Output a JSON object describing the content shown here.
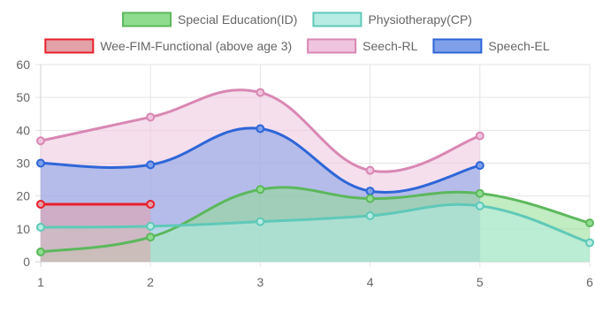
{
  "chart_data": {
    "type": "area",
    "x": [
      1,
      2,
      3,
      4,
      5,
      6
    ],
    "ylim": [
      0,
      60
    ],
    "yticks": [
      0,
      10,
      20,
      30,
      40,
      50,
      60
    ],
    "xticks": [
      1,
      2,
      3,
      4,
      5,
      6
    ],
    "grid": true,
    "legend_position": "top",
    "series": [
      {
        "name": "Special Education(ID)",
        "values": [
          3,
          7.5,
          22,
          19.2,
          20.8,
          11.8
        ],
        "color": "#5cb85c",
        "fill": "#8fdc8f"
      },
      {
        "name": "Physiotherapy(CP)",
        "values": [
          10.5,
          10.8,
          12.2,
          14,
          17,
          5.8
        ],
        "color": "#5fc9b8",
        "fill": "#b7ece4"
      },
      {
        "name": "Wee-FIM-Functional (above age 3)",
        "values": [
          17.5,
          17.5,
          null,
          null,
          null,
          null
        ],
        "color": "#e8202b",
        "fill": "#e3a1a8"
      },
      {
        "name": "Seech-RL",
        "values": [
          36.8,
          44,
          51.5,
          27.8,
          38.3,
          null
        ],
        "color": "#d987b3",
        "fill": "#efc4df"
      },
      {
        "name": "Speech-EL",
        "values": [
          30,
          29.5,
          40.5,
          21.5,
          29.3,
          null
        ],
        "color": "#2e66d8",
        "fill": "#7f9fe8"
      }
    ]
  }
}
